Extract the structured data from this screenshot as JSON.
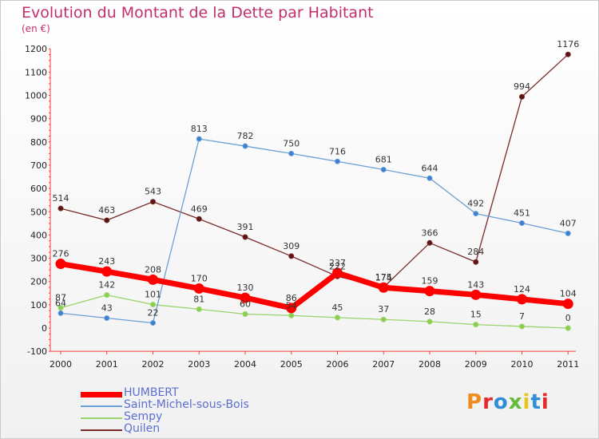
{
  "title": "Evolution du Montant de la Dette par Habitant",
  "unit": "(en €)",
  "logo": {
    "text": "Proxiti",
    "colors": [
      "#f08c1c",
      "#e8272a",
      "#2f8fd6",
      "#66bb3a",
      "#e8c51c",
      "#2f8fd6",
      "#e8272a"
    ]
  },
  "chart_data": {
    "type": "line",
    "x": [
      "2000",
      "2001",
      "2002",
      "2003",
      "2004",
      "2005",
      "2006",
      "2007",
      "2008",
      "2009",
      "2010",
      "2011"
    ],
    "ylim": [
      -100,
      1200
    ],
    "yticks": [
      "-100",
      "0",
      "100",
      "200",
      "300",
      "400",
      "500",
      "600",
      "700",
      "800",
      "900",
      "1000",
      "1100",
      "1200"
    ],
    "grid": false,
    "legend_position": "bottom-left",
    "series": [
      {
        "name": "HUMBERT",
        "color": "#ff0000",
        "values": [
          276,
          243,
          208,
          170,
          130,
          86,
          237,
          174,
          159,
          143,
          124,
          104
        ]
      },
      {
        "name": "Saint-Michel-sous-Bois",
        "color": "#6c9fd6",
        "values": [
          64,
          43,
          22,
          813,
          782,
          750,
          716,
          681,
          644,
          492,
          451,
          407
        ]
      },
      {
        "name": "Sempy",
        "color": "#99d36b",
        "values": [
          87,
          142,
          101,
          81,
          60,
          54,
          45,
          37,
          28,
          15,
          7,
          0
        ]
      },
      {
        "name": "Quilen",
        "color": "#7a2a2a",
        "values": [
          514,
          463,
          543,
          469,
          391,
          309,
          222,
          175,
          366,
          284,
          994,
          1176
        ]
      }
    ]
  }
}
